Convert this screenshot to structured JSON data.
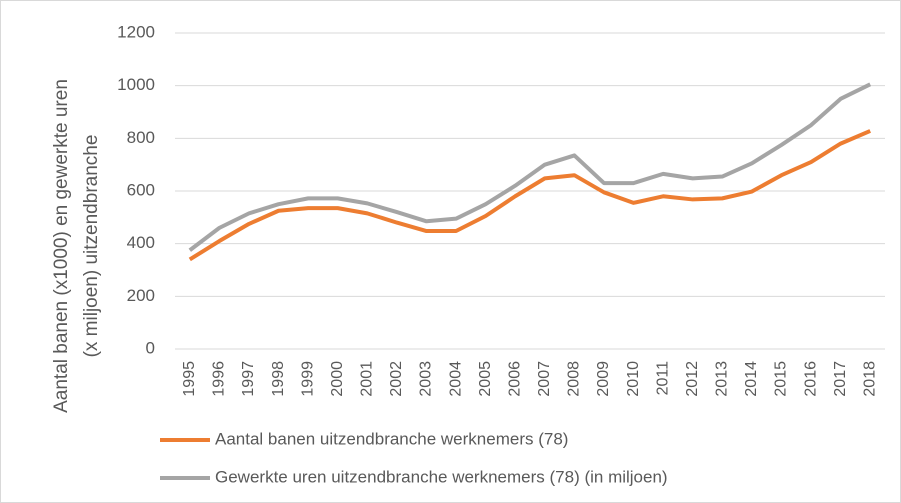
{
  "chart_data": {
    "type": "line",
    "ylabel": [
      "Aantal banen (x1000) en gewerkte uren",
      "(x miljoen) uitzendbranche"
    ],
    "categories": [
      "1995",
      "1996",
      "1997",
      "1998",
      "1999",
      "2000",
      "2001",
      "2002",
      "2003",
      "2004",
      "2005",
      "2006",
      "2007",
      "2008",
      "2009",
      "2010",
      "2011",
      "2012",
      "2013",
      "2014",
      "2015",
      "2016",
      "2017",
      "2018"
    ],
    "series": [
      {
        "name": "Aantal banen uitzendbranche werknemers (78)",
        "color": "#ed7d31",
        "values": [
          340,
          410,
          475,
          525,
          535,
          535,
          515,
          480,
          448,
          448,
          505,
          580,
          648,
          660,
          595,
          555,
          580,
          568,
          572,
          598,
          660,
          710,
          780,
          828
        ]
      },
      {
        "name": "Gewerkte uren uitzendbranche werknemers (78) (in miljoen)",
        "color": "#a5a5a5",
        "values": [
          375,
          460,
          515,
          550,
          572,
          572,
          553,
          520,
          485,
          495,
          550,
          620,
          700,
          735,
          630,
          630,
          665,
          648,
          655,
          705,
          775,
          850,
          950,
          1005
        ]
      }
    ],
    "ylim": [
      0,
      1200
    ],
    "yticks": [
      0,
      200,
      400,
      600,
      800,
      1000,
      1200
    ],
    "grid": true,
    "legend": "bottom"
  }
}
